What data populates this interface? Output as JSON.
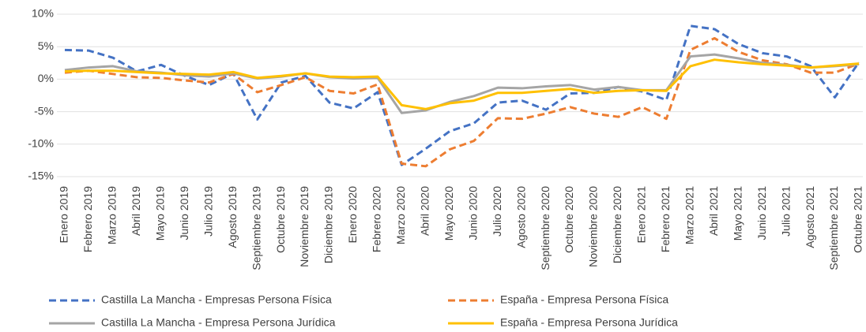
{
  "chart_data": {
    "type": "line",
    "categories": [
      "Enero 2019",
      "Febrero 2019",
      "Marzo 2019",
      "Abril 2019",
      "Mayo 2019",
      "Junio 2019",
      "Julio 2019",
      "Agosto 2019",
      "Septiembre 2019",
      "Octubre 2019",
      "Noviembre 2019",
      "Diciembre 2019",
      "Enero 2020",
      "Febrero 2020",
      "Marzo 2020",
      "Abril 2020",
      "Mayo 2020",
      "Junio 2020",
      "Julio 2020",
      "Agosto 2020",
      "Septiembre 2020",
      "Octubre 2020",
      "Noviembre 2020",
      "Diciembre 2020",
      "Enero 2021",
      "Febrero 2021",
      "Marzo 2021",
      "Abril 2021",
      "Mayo 2021",
      "Junio 2021",
      "Julio 2021",
      "Agosto 2021",
      "Septiembre 2021",
      "Octubre 2021"
    ],
    "series": [
      {
        "name": "Castilla La Mancha - Empresas Persona Física",
        "color": "#4472c4",
        "dashed": true,
        "values": [
          4.5,
          4.4,
          3.3,
          1.2,
          2.2,
          0.5,
          -0.9,
          0.9,
          -6.2,
          -0.5,
          0.5,
          -3.6,
          -4.5,
          -2,
          -13.2,
          -10.7,
          -8,
          -6.8,
          -3.6,
          -3.3,
          -4.7,
          -2.2,
          -2.1,
          -1.2,
          -1.9,
          -3.2,
          8.2,
          7.7,
          5.4,
          4,
          3.5,
          2,
          -2.8,
          2.6
        ]
      },
      {
        "name": "España - Empresa Persona Física",
        "color": "#ed7d31",
        "dashed": true,
        "values": [
          1,
          1.3,
          0.8,
          0.3,
          0.2,
          -0.2,
          -0.5,
          0.8,
          -2,
          -0.9,
          0.3,
          -1.8,
          -2.2,
          -0.8,
          -13,
          -13.4,
          -10.8,
          -9.5,
          -6,
          -6.1,
          -5.3,
          -4.3,
          -5.3,
          -5.8,
          -4.3,
          -6.1,
          4.5,
          6.3,
          4.2,
          2.9,
          2.3,
          1,
          1,
          2.4
        ]
      },
      {
        "name": "Castilla La Mancha - Empresa Persona Jurídica",
        "color": "#a5a5a5",
        "dashed": false,
        "values": [
          1.4,
          1.8,
          2,
          1.2,
          1,
          0.6,
          0.4,
          0.9,
          0.1,
          0.4,
          0.9,
          0.3,
          0.1,
          0.2,
          -5.2,
          -4.8,
          -3.5,
          -2.6,
          -1.3,
          -1.4,
          -1.1,
          -0.9,
          -1.6,
          -1.2,
          -1.7,
          -1.7,
          3.5,
          3.8,
          3.2,
          2.5,
          2.2,
          1.8,
          2,
          2.3
        ]
      },
      {
        "name": "España - Empresa Persona Jurídica",
        "color": "#ffc000",
        "dashed": false,
        "values": [
          1.2,
          1.3,
          1.3,
          1.1,
          0.9,
          0.8,
          0.7,
          1.1,
          0.2,
          0.5,
          0.9,
          0.4,
          0.3,
          0.4,
          -4,
          -4.6,
          -3.7,
          -3.3,
          -2.1,
          -2.1,
          -1.8,
          -1.5,
          -2.1,
          -1.8,
          -1.7,
          -1.8,
          2,
          3,
          2.6,
          2.3,
          2.1,
          1.8,
          2.1,
          2.4
        ]
      }
    ],
    "ylim": [
      -15,
      10
    ],
    "yticks": [
      {
        "value": -15,
        "label": "-15%"
      },
      {
        "value": -10,
        "label": "-10%"
      },
      {
        "value": -5,
        "label": "-5%"
      },
      {
        "value": 0,
        "label": "0%"
      },
      {
        "value": 5,
        "label": "5%"
      },
      {
        "value": 10,
        "label": "10%"
      }
    ],
    "grid": true,
    "legend": "bottom"
  }
}
